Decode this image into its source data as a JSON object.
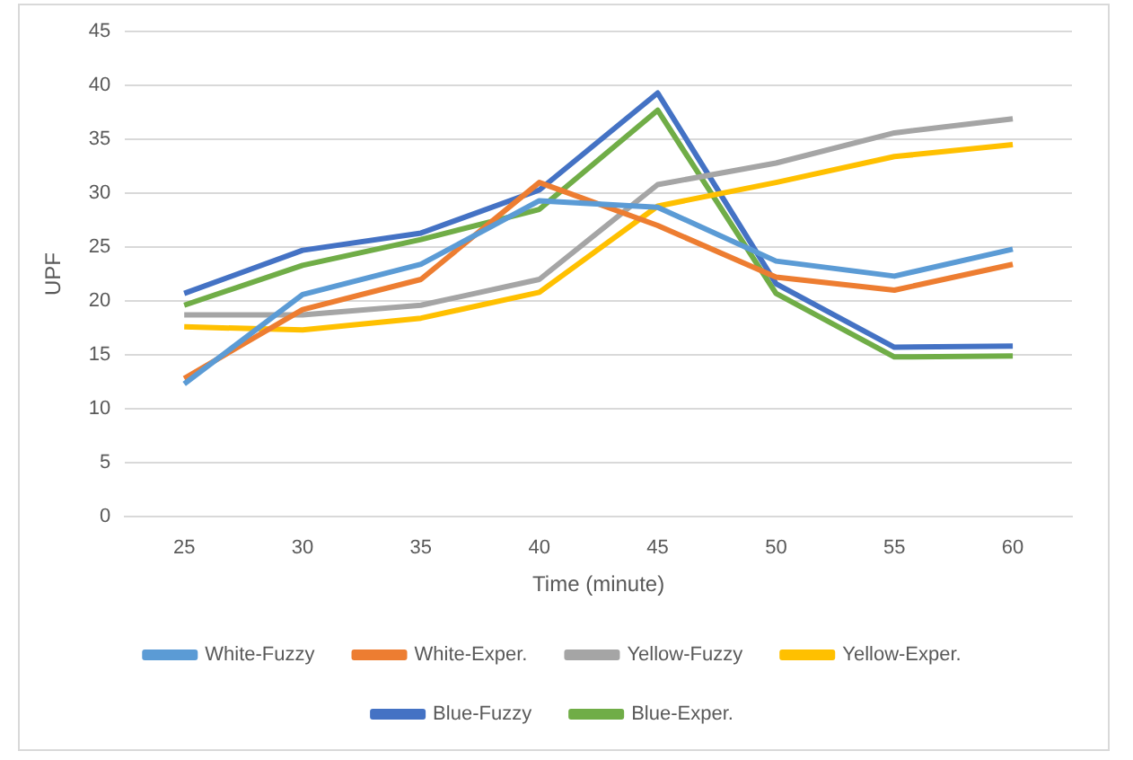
{
  "chart_data": {
    "type": "line",
    "xlabel": "Time (minute)",
    "ylabel": "UPF",
    "categories": [
      "25",
      "30",
      "35",
      "40",
      "45",
      "50",
      "55",
      "60"
    ],
    "ylim": [
      0,
      45
    ],
    "yticks": [
      0,
      5,
      10,
      15,
      20,
      25,
      30,
      35,
      40,
      45
    ],
    "grid": "y",
    "legend": "bottom",
    "marker": "none",
    "line_style": "solid",
    "series": [
      {
        "name": "White-Fuzzy",
        "color": "#5b9bd5",
        "values": [
          12.3,
          20.6,
          23.4,
          29.3,
          28.7,
          23.7,
          22.3,
          24.8
        ]
      },
      {
        "name": "White-Exper.",
        "color": "#ed7d31",
        "values": [
          12.8,
          19.2,
          22,
          31,
          27,
          22.2,
          21,
          23.4
        ]
      },
      {
        "name": "Yellow-Fuzzy",
        "color": "#a5a5a5",
        "values": [
          18.7,
          18.7,
          19.6,
          22,
          30.8,
          32.8,
          35.6,
          36.9
        ]
      },
      {
        "name": "Yellow-Exper.",
        "color": "#ffc000",
        "values": [
          17.6,
          17.3,
          18.4,
          20.8,
          28.8,
          31,
          33.4,
          34.5
        ]
      },
      {
        "name": "Blue-Fuzzy",
        "color": "#4472c4",
        "values": [
          20.7,
          24.7,
          26.3,
          30.3,
          39.3,
          21.6,
          15.7,
          15.8
        ]
      },
      {
        "name": "Blue-Exper.",
        "color": "#70ad47",
        "values": [
          19.6,
          23.3,
          25.7,
          28.5,
          37.7,
          20.7,
          14.8,
          14.9
        ]
      }
    ]
  }
}
